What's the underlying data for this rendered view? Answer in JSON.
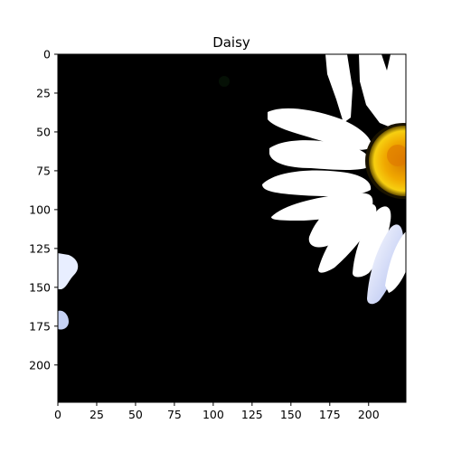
{
  "figure": {
    "title": "Daisy"
  },
  "axes": {
    "x_ticks": [
      "0",
      "25",
      "50",
      "75",
      "100",
      "125",
      "150",
      "175",
      "200"
    ],
    "y_ticks": [
      "0",
      "25",
      "50",
      "75",
      "100",
      "125",
      "150",
      "175",
      "200"
    ],
    "x_range": [
      0,
      224
    ],
    "y_range": [
      0,
      224
    ],
    "y_inverted": true
  },
  "image": {
    "subject": "daisy flower",
    "background_color": "#000000",
    "petal_color": "#ffffff",
    "center_color": "#f2c200",
    "accent_blue": "#b8c6f0"
  }
}
